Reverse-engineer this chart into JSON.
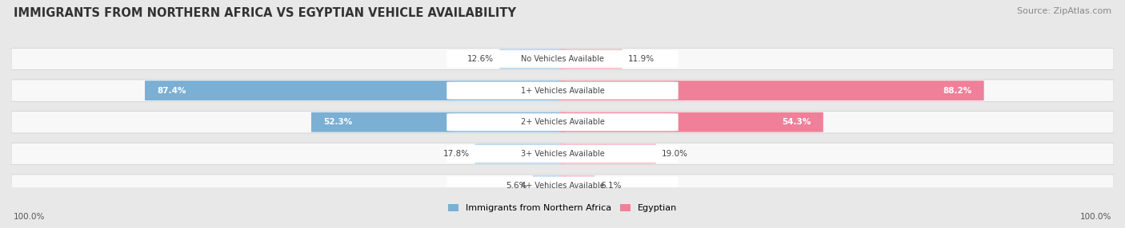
{
  "title": "IMMIGRANTS FROM NORTHERN AFRICA VS EGYPTIAN VEHICLE AVAILABILITY",
  "source": "Source: ZipAtlas.com",
  "categories": [
    "No Vehicles Available",
    "1+ Vehicles Available",
    "2+ Vehicles Available",
    "3+ Vehicles Available",
    "4+ Vehicles Available"
  ],
  "left_values": [
    12.6,
    87.4,
    52.3,
    17.8,
    5.6
  ],
  "right_values": [
    11.9,
    88.2,
    54.3,
    19.0,
    6.1
  ],
  "left_color": "#7bafd4",
  "right_color": "#f0809a",
  "left_color_light": "#aacde8",
  "right_color_light": "#f8afc0",
  "left_label": "Immigrants from Northern Africa",
  "right_label": "Egyptian",
  "bg_color": "#e8e8e8",
  "row_bg_color": "#f5f5f5",
  "title_fontsize": 10.5,
  "source_fontsize": 8,
  "footer_label": "100.0%"
}
